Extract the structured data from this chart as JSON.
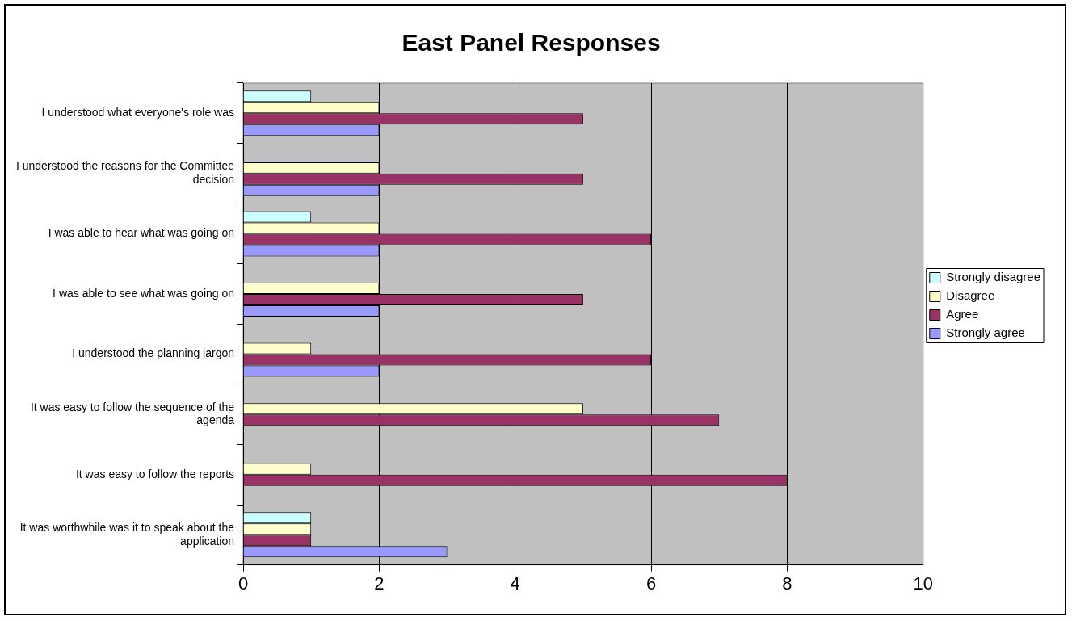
{
  "chart_data": {
    "type": "bar",
    "orientation": "horizontal",
    "title": "East Panel Responses",
    "categories": [
      "I understood what everyone's role was",
      "I understood the reasons for the Committee decision",
      "I was able to hear what was going on",
      "I was able to see what was going on",
      "I understood the planning jargon",
      "It was easy to follow the sequence of the agenda",
      "It was easy to follow the reports",
      "It was worthwhile was it to speak about the application"
    ],
    "series": [
      {
        "name": "Strongly disagree",
        "color": "#ccffff",
        "values": [
          1,
          null,
          1,
          null,
          null,
          null,
          null,
          1
        ]
      },
      {
        "name": "Disagree",
        "color": "#ffffcc",
        "values": [
          2,
          2,
          2,
          2,
          1,
          5,
          1,
          1
        ]
      },
      {
        "name": "Agree",
        "color": "#993366",
        "values": [
          5,
          5,
          6,
          5,
          6,
          7,
          8,
          1
        ]
      },
      {
        "name": "Strongly agree",
        "color": "#9999ff",
        "values": [
          2,
          2,
          2,
          2,
          2,
          null,
          null,
          3
        ]
      }
    ],
    "xlim": [
      0,
      10
    ],
    "xticks": [
      0,
      2,
      4,
      6,
      8,
      10
    ],
    "grid": "x",
    "legend": "right"
  }
}
